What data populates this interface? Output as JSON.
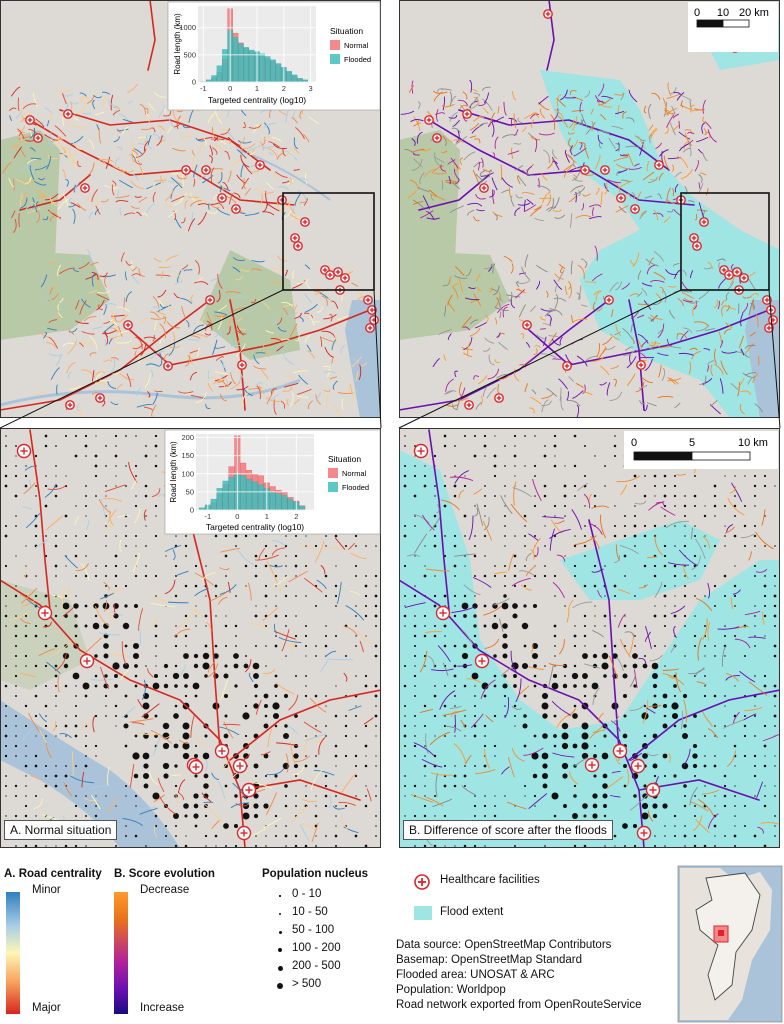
{
  "inset_top": {
    "y_label": "Road length (km)",
    "x_label": "Targeted centrality (log10)",
    "y_ticks": [
      "0",
      "500",
      "1000"
    ],
    "x_ticks": [
      "-1",
      "0",
      "1",
      "2",
      "3"
    ],
    "legend_title": "Situation",
    "legend_normal": "Normal",
    "legend_flooded": "Flooded"
  },
  "inset_bottom": {
    "y_label": "Road length (km)",
    "x_label": "Targeted centrality (log10)",
    "y_ticks": [
      "0",
      "50",
      "100",
      "150",
      "200"
    ],
    "x_ticks": [
      "-1",
      "0",
      "1",
      "2"
    ],
    "legend_title": "Situation",
    "legend_normal": "Normal",
    "legend_flooded": "Flooded"
  },
  "scale_top": {
    "labels": [
      "0",
      "10",
      "20 km"
    ]
  },
  "scale_bottom": {
    "labels": [
      "0",
      "5",
      "10 km"
    ]
  },
  "panels": {
    "a_label": "A. Normal situation",
    "b_label": "B. Difference of score after the floods"
  },
  "legend": {
    "centrality_title": "A. Road centrality",
    "centrality_top": "Minor",
    "centrality_bottom": "Major",
    "score_title": "B.  Score evolution",
    "score_top": "Decrease",
    "score_bottom": "Increase",
    "population_title": "Population nucleus",
    "population_classes": [
      "0 - 10",
      "10 - 50",
      "50 - 100",
      "100 - 200",
      "200 - 500",
      "> 500"
    ],
    "healthcare_label": "Healthcare facilities",
    "flood_label": "Flood extent",
    "sources": [
      "Data source: OpenStreetMap Contributors",
      "Basemap: OpenStreetMap Standard",
      "Flooded area: UNOSAT & ARC",
      "Population: Worldpop",
      "Road network exported from OpenRouteService"
    ]
  },
  "colors": {
    "land": "#ddd9d4",
    "green": "#b7c9a6",
    "water": "#aac3d8",
    "flood": "#9ee5e3",
    "road_major": "#d7261e",
    "road_minor": "#2f7fc0",
    "score_decrease": "#ff9a2e",
    "score_increase": "#6a0fb0",
    "hist_normal": "#f3898a",
    "hist_flooded": "#3fbfbc",
    "healthcare": "#e0242b"
  },
  "chart_data": [
    {
      "type": "bar",
      "title": "",
      "xlabel": "Targeted centrality (log10)",
      "ylabel": "Road length (km)",
      "ylim": [
        0,
        1400
      ],
      "x": [
        -1.0,
        -0.8,
        -0.6,
        -0.4,
        -0.2,
        0.0,
        0.2,
        0.4,
        0.6,
        0.8,
        1.0,
        1.2,
        1.4,
        1.6,
        1.8,
        2.0,
        2.2,
        2.4,
        2.6,
        2.8
      ],
      "series": [
        {
          "name": "Normal",
          "values": [
            10,
            30,
            80,
            180,
            420,
            1350,
            900,
            720,
            620,
            560,
            520,
            470,
            430,
            380,
            320,
            260,
            180,
            120,
            60,
            30
          ]
        },
        {
          "name": "Flooded",
          "values": [
            8,
            40,
            120,
            300,
            600,
            950,
            820,
            700,
            640,
            590,
            560,
            520,
            470,
            410,
            340,
            270,
            200,
            130,
            70,
            40
          ]
        }
      ],
      "legend": "right"
    },
    {
      "type": "bar",
      "title": "",
      "xlabel": "Targeted centrality (log10)",
      "ylabel": "Road length (km)",
      "ylim": [
        0,
        210
      ],
      "x": [
        -1.2,
        -1.0,
        -0.8,
        -0.6,
        -0.4,
        -0.2,
        0.0,
        0.2,
        0.4,
        0.6,
        0.8,
        1.0,
        1.2,
        1.4,
        1.6,
        1.8,
        2.0,
        2.2
      ],
      "series": [
        {
          "name": "Normal",
          "values": [
            4,
            10,
            20,
            45,
            70,
            120,
            205,
            130,
            110,
            100,
            95,
            75,
            65,
            55,
            50,
            35,
            25,
            12
          ]
        },
        {
          "name": "Flooded",
          "values": [
            6,
            14,
            30,
            60,
            80,
            90,
            100,
            95,
            85,
            78,
            70,
            60,
            50,
            45,
            40,
            30,
            22,
            10
          ]
        }
      ],
      "legend": "right"
    }
  ]
}
